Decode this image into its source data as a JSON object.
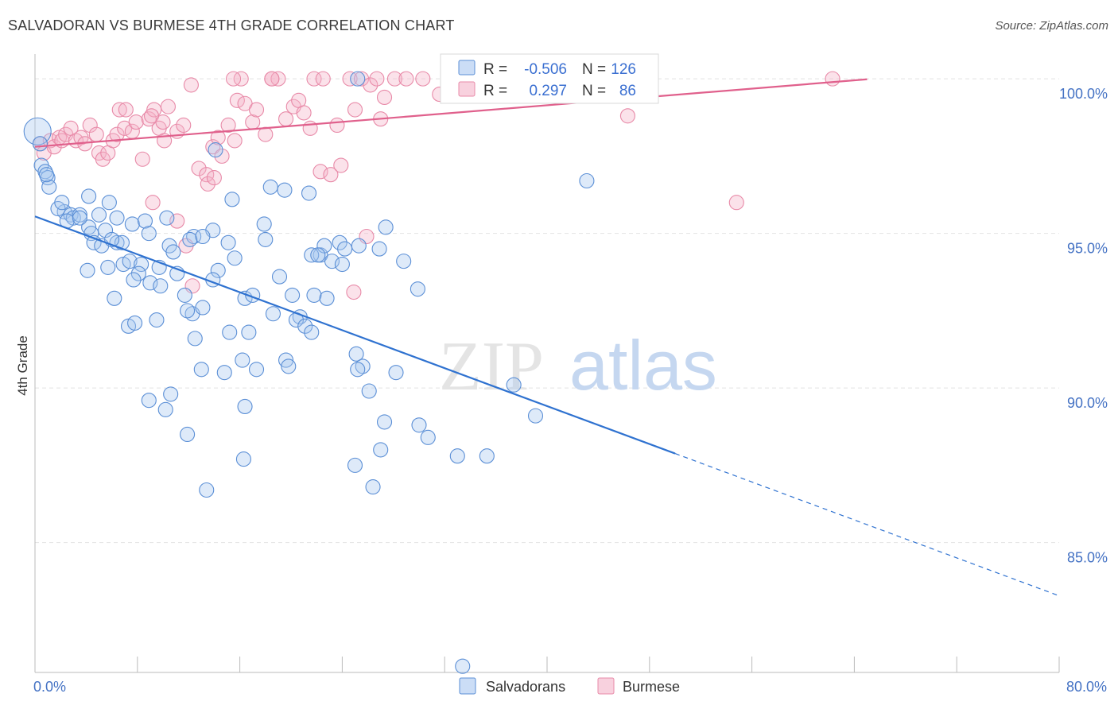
{
  "header": {
    "title": "SALVADORAN VS BURMESE 4TH GRADE CORRELATION CHART",
    "source": "Source: ZipAtlas.com"
  },
  "watermark": {
    "zip": "ZIP",
    "atlas": "atlas"
  },
  "legend_top": {
    "rows": [
      {
        "r_label": "R =",
        "r_value": "-0.506",
        "n_label": "N =",
        "n_value": "126"
      },
      {
        "r_label": "R =",
        "r_value": "0.297",
        "n_label": "N =",
        "n_value": "86"
      }
    ]
  },
  "legend_bottom": [
    {
      "label": "Salvadorans"
    },
    {
      "label": "Burmese"
    }
  ],
  "colors": {
    "salvadoran_fill": "rgba(168,199,240,0.38)",
    "salvadoran_stroke": "#5b8fd6",
    "salvadoran_line": "#2f72d0",
    "burmese_fill": "rgba(244,178,200,0.38)",
    "burmese_stroke": "#e88aa8",
    "burmese_line": "#e0608c",
    "value_text": "#3a6fd1",
    "grid": "#e2e2e2"
  },
  "chart_data": {
    "type": "scatter",
    "title": "SALVADORAN VS BURMESE 4TH GRADE CORRELATION CHART",
    "xlabel": "",
    "ylabel": "4th Grade",
    "xlim": [
      0,
      80
    ],
    "ylim": [
      80.8,
      100.8
    ],
    "x_ticks": [
      "0.0%",
      "80.0%"
    ],
    "y_ticks": [
      {
        "value": 100,
        "label": "100.0%"
      },
      {
        "value": 95,
        "label": "95.0%"
      },
      {
        "value": 90,
        "label": "90.0%"
      },
      {
        "value": 85,
        "label": "85.0%"
      }
    ],
    "grid": true,
    "legend_placement": "top-center",
    "series": [
      {
        "name": "Salvadorans",
        "r": -0.506,
        "n": 126,
        "trendline": {
          "x0": 0,
          "y0": 95.55,
          "x_solid_end": 50,
          "x_dash_end": 80,
          "slope": -0.1534
        },
        "points": [
          [
            0.2,
            98.3
          ],
          [
            0.5,
            97.2
          ],
          [
            0.8,
            97.0
          ],
          [
            1.0,
            96.8
          ],
          [
            1.1,
            96.5
          ],
          [
            0.4,
            97.9
          ],
          [
            0.9,
            96.9
          ],
          [
            2.3,
            95.7
          ],
          [
            2.8,
            95.6
          ],
          [
            3.0,
            95.5
          ],
          [
            1.8,
            95.8
          ],
          [
            2.1,
            96.0
          ],
          [
            2.5,
            95.4
          ],
          [
            3.5,
            95.6
          ],
          [
            4.2,
            95.2
          ],
          [
            4.4,
            95.0
          ],
          [
            4.2,
            96.2
          ],
          [
            5.8,
            96.0
          ],
          [
            5.0,
            95.6
          ],
          [
            6.4,
            95.5
          ],
          [
            5.5,
            95.1
          ],
          [
            6.4,
            94.7
          ],
          [
            6.8,
            94.7
          ],
          [
            7.6,
            95.3
          ],
          [
            8.6,
            95.4
          ],
          [
            8.9,
            95.0
          ],
          [
            10.3,
            95.5
          ],
          [
            4.6,
            94.7
          ],
          [
            5.2,
            94.6
          ],
          [
            4.1,
            93.8
          ],
          [
            5.7,
            93.9
          ],
          [
            6.9,
            94.0
          ],
          [
            7.4,
            94.1
          ],
          [
            8.3,
            94.0
          ],
          [
            8.1,
            93.7
          ],
          [
            7.7,
            93.5
          ],
          [
            9.0,
            93.4
          ],
          [
            9.7,
            93.9
          ],
          [
            9.8,
            93.3
          ],
          [
            10.5,
            94.6
          ],
          [
            10.8,
            94.4
          ],
          [
            12.4,
            94.9
          ],
          [
            12.1,
            94.8
          ],
          [
            13.9,
            95.1
          ],
          [
            13.1,
            94.9
          ],
          [
            15.1,
            94.7
          ],
          [
            15.6,
            94.2
          ],
          [
            14.3,
            93.8
          ],
          [
            13.9,
            93.5
          ],
          [
            11.7,
            93.0
          ],
          [
            12.3,
            92.4
          ],
          [
            11.9,
            92.5
          ],
          [
            13.1,
            92.6
          ],
          [
            16.4,
            92.9
          ],
          [
            17.0,
            93.0
          ],
          [
            18.0,
            94.8
          ],
          [
            19.1,
            93.6
          ],
          [
            18.6,
            92.4
          ],
          [
            20.1,
            93.0
          ],
          [
            20.7,
            92.3
          ],
          [
            20.4,
            92.2
          ],
          [
            21.1,
            92.0
          ],
          [
            21.8,
            93.0
          ],
          [
            22.3,
            94.3
          ],
          [
            23.2,
            94.1
          ],
          [
            22.6,
            94.6
          ],
          [
            23.8,
            94.7
          ],
          [
            24.2,
            94.5
          ],
          [
            24.0,
            94.0
          ],
          [
            21.6,
            94.3
          ],
          [
            25.3,
            94.6
          ],
          [
            26.9,
            94.5
          ],
          [
            27.4,
            95.2
          ],
          [
            28.8,
            94.1
          ],
          [
            29.9,
            93.2
          ],
          [
            6.2,
            92.9
          ],
          [
            7.3,
            92.0
          ],
          [
            7.8,
            92.1
          ],
          [
            9.5,
            92.2
          ],
          [
            12.5,
            91.6
          ],
          [
            15.2,
            91.8
          ],
          [
            16.7,
            91.8
          ],
          [
            21.6,
            91.8
          ],
          [
            22.8,
            92.9
          ],
          [
            25.1,
            91.1
          ],
          [
            25.6,
            90.7
          ],
          [
            25.2,
            90.6
          ],
          [
            26.1,
            89.9
          ],
          [
            28.2,
            90.5
          ],
          [
            13.0,
            90.6
          ],
          [
            14.8,
            90.5
          ],
          [
            16.2,
            90.9
          ],
          [
            17.3,
            90.6
          ],
          [
            19.6,
            90.9
          ],
          [
            19.8,
            90.7
          ],
          [
            10.6,
            89.8
          ],
          [
            8.9,
            89.6
          ],
          [
            10.2,
            89.3
          ],
          [
            16.4,
            89.4
          ],
          [
            11.9,
            88.5
          ],
          [
            27.3,
            88.9
          ],
          [
            30.0,
            88.8
          ],
          [
            30.7,
            88.4
          ],
          [
            27.0,
            88.0
          ],
          [
            16.3,
            87.7
          ],
          [
            25.0,
            87.5
          ],
          [
            33.0,
            87.8
          ],
          [
            35.3,
            87.8
          ],
          [
            26.4,
            86.8
          ],
          [
            13.4,
            86.7
          ],
          [
            37.4,
            90.1
          ],
          [
            39.1,
            89.1
          ],
          [
            43.1,
            96.7
          ],
          [
            15.4,
            96.1
          ],
          [
            18.4,
            96.5
          ],
          [
            19.5,
            96.4
          ],
          [
            21.4,
            96.3
          ],
          [
            25.2,
            100.0
          ],
          [
            33.4,
            81.0
          ],
          [
            14.1,
            97.7
          ],
          [
            22.1,
            94.3
          ],
          [
            17.9,
            95.3
          ],
          [
            3.5,
            95.5
          ],
          [
            6.0,
            94.8
          ],
          [
            11.1,
            93.7
          ]
        ]
      },
      {
        "name": "Burmese",
        "r": 0.297,
        "n": 86,
        "trendline": {
          "x0": 0,
          "y0": 97.8,
          "x_end": 65,
          "slope": 0.0336
        },
        "points": [
          [
            0.4,
            97.9
          ],
          [
            0.7,
            97.6
          ],
          [
            1.2,
            98.0
          ],
          [
            1.5,
            97.8
          ],
          [
            1.9,
            98.1
          ],
          [
            2.1,
            98.0
          ],
          [
            2.4,
            98.2
          ],
          [
            2.8,
            98.4
          ],
          [
            3.2,
            98.0
          ],
          [
            3.6,
            98.1
          ],
          [
            3.9,
            97.9
          ],
          [
            4.3,
            98.5
          ],
          [
            4.8,
            98.2
          ],
          [
            5.0,
            97.6
          ],
          [
            5.3,
            97.4
          ],
          [
            5.7,
            97.6
          ],
          [
            6.1,
            98.0
          ],
          [
            6.4,
            98.2
          ],
          [
            7.0,
            98.4
          ],
          [
            6.6,
            99.0
          ],
          [
            7.6,
            98.3
          ],
          [
            7.9,
            98.6
          ],
          [
            8.4,
            97.4
          ],
          [
            8.9,
            98.7
          ],
          [
            9.3,
            99.0
          ],
          [
            9.7,
            98.4
          ],
          [
            10.1,
            98.0
          ],
          [
            10.4,
            99.1
          ],
          [
            11.1,
            98.3
          ],
          [
            11.6,
            98.5
          ],
          [
            12.2,
            99.8
          ],
          [
            12.8,
            97.1
          ],
          [
            13.4,
            96.9
          ],
          [
            13.9,
            97.8
          ],
          [
            14.3,
            98.1
          ],
          [
            14.6,
            97.5
          ],
          [
            15.1,
            98.5
          ],
          [
            15.6,
            98.0
          ],
          [
            15.8,
            99.3
          ],
          [
            16.4,
            99.2
          ],
          [
            17.0,
            98.6
          ],
          [
            17.3,
            99.0
          ],
          [
            18.0,
            98.2
          ],
          [
            18.5,
            100.0
          ],
          [
            19.0,
            100.0
          ],
          [
            19.6,
            98.7
          ],
          [
            20.2,
            99.1
          ],
          [
            20.6,
            99.3
          ],
          [
            21.0,
            98.9
          ],
          [
            21.5,
            98.4
          ],
          [
            21.8,
            100.0
          ],
          [
            22.3,
            97.0
          ],
          [
            22.5,
            100.0
          ],
          [
            23.1,
            96.9
          ],
          [
            23.6,
            98.5
          ],
          [
            23.9,
            97.2
          ],
          [
            24.6,
            100.0
          ],
          [
            25.0,
            99.0
          ],
          [
            25.5,
            100.0
          ],
          [
            26.2,
            99.8
          ],
          [
            26.7,
            100.0
          ],
          [
            27.0,
            98.7
          ],
          [
            27.3,
            99.4
          ],
          [
            28.1,
            100.0
          ],
          [
            29.0,
            100.0
          ],
          [
            30.3,
            100.0
          ],
          [
            31.6,
            99.5
          ],
          [
            33.2,
            100.0
          ],
          [
            36.3,
            100.0
          ],
          [
            46.3,
            98.8
          ],
          [
            54.8,
            96.0
          ],
          [
            62.3,
            100.0
          ],
          [
            13.5,
            96.6
          ],
          [
            11.1,
            95.4
          ],
          [
            11.8,
            94.6
          ],
          [
            9.2,
            96.0
          ],
          [
            12.3,
            93.3
          ],
          [
            24.9,
            93.1
          ],
          [
            25.9,
            94.9
          ],
          [
            18.5,
            100.0
          ],
          [
            16.1,
            100.0
          ],
          [
            15.5,
            100.0
          ],
          [
            9.1,
            98.8
          ],
          [
            14.0,
            96.8
          ],
          [
            10.0,
            98.6
          ],
          [
            7.1,
            99.0
          ]
        ]
      }
    ]
  }
}
